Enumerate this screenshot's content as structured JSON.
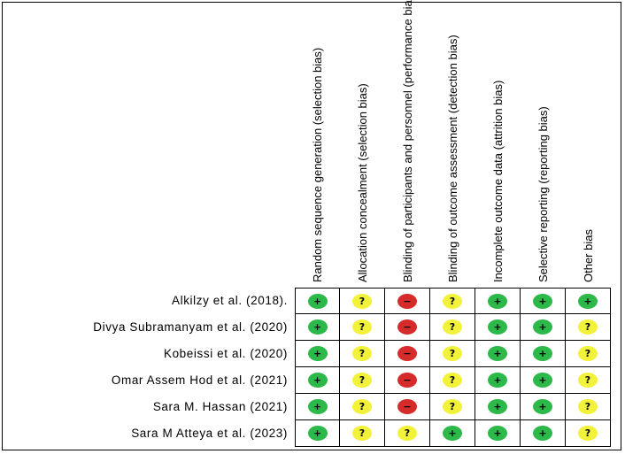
{
  "columns": [
    "Random sequence generation (selection bias)",
    "Allocation concealment (selection bias)",
    "Blinding of participants and personnel (performance bias)",
    "Blinding of outcome assessment (detection bias)",
    "Incomplete outcome data (attrition bias)",
    "Selective reporting (reporting bias)",
    "Other bias"
  ],
  "rows": [
    {
      "study": "Alkilzy et al. (2018).",
      "ratings": [
        "+",
        "?",
        "−",
        "?",
        "+",
        "+",
        "+"
      ]
    },
    {
      "study": "Divya Subramanyam et al. (2020)",
      "ratings": [
        "+",
        "?",
        "−",
        "?",
        "+",
        "+",
        "?"
      ]
    },
    {
      "study": "Kobeissi et al. (2020)",
      "ratings": [
        "+",
        "?",
        "−",
        "?",
        "+",
        "+",
        "?"
      ]
    },
    {
      "study": "Omar Assem Hod et al. (2021)",
      "ratings": [
        "+",
        "?",
        "−",
        "?",
        "+",
        "+",
        "?"
      ]
    },
    {
      "study": "Sara M. Hassan (2021)",
      "ratings": [
        "+",
        "?",
        "−",
        "?",
        "+",
        "+",
        "?"
      ]
    },
    {
      "study": "Sara M Atteya et al. (2023)",
      "ratings": [
        "+",
        "?",
        "?",
        "+",
        "+",
        "+",
        "?"
      ]
    }
  ],
  "colors": {
    "low": "#2db84a",
    "unclear": "#f2f23a",
    "high": "#d62b2b"
  }
}
